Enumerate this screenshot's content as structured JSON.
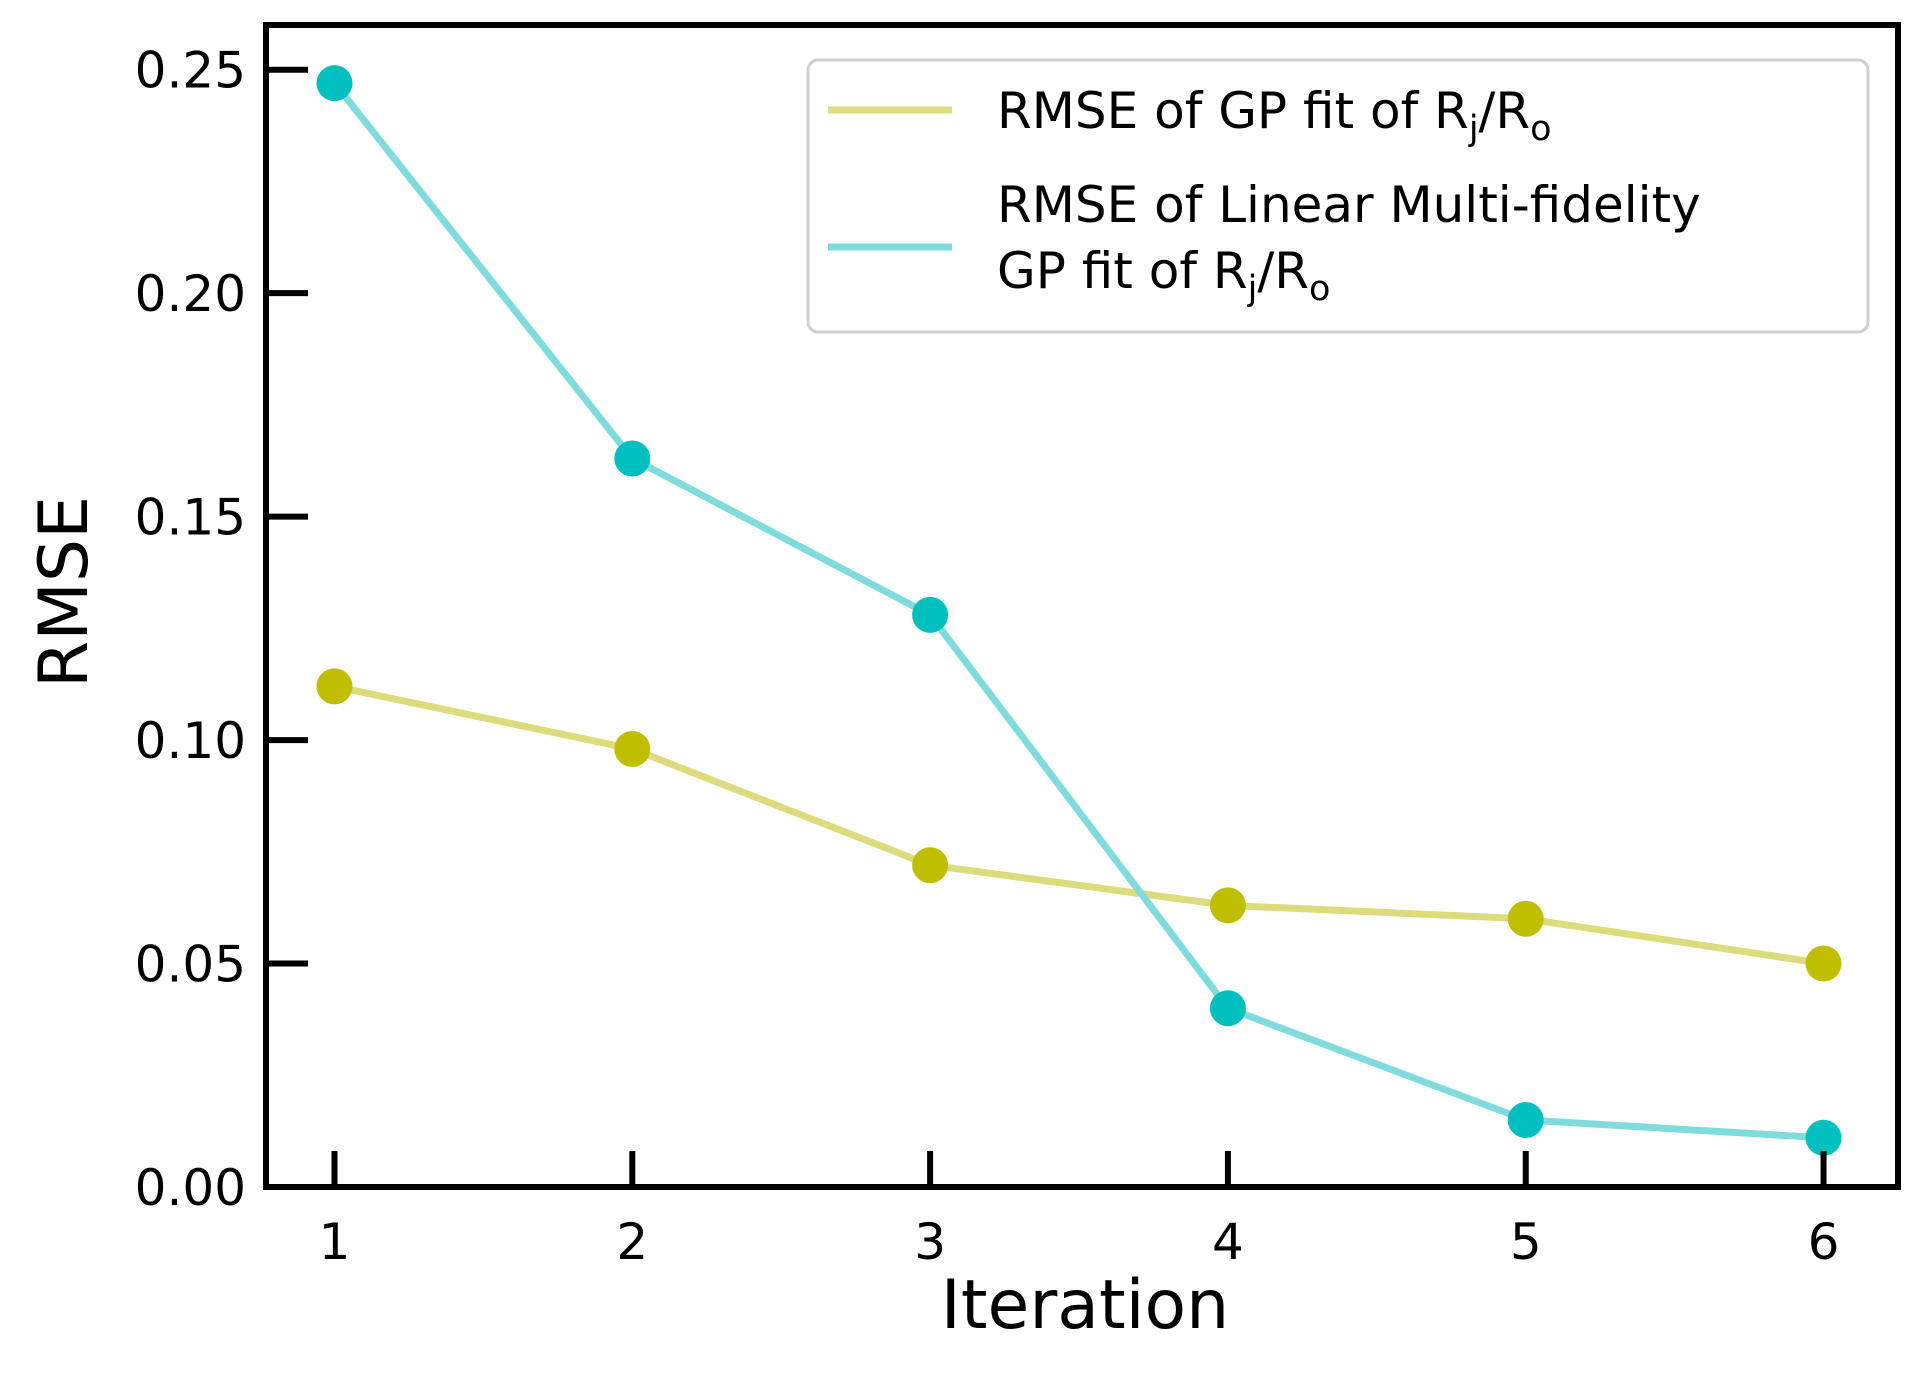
{
  "chart_data": {
    "type": "line",
    "title": "",
    "xlabel": "Iteration",
    "ylabel": "RMSE",
    "x": [
      1,
      2,
      3,
      4,
      5,
      6
    ],
    "xlim": [
      0.77,
      6.25
    ],
    "ylim": [
      0.0,
      0.26
    ],
    "xticks": [
      1,
      2,
      3,
      4,
      5,
      6
    ],
    "yticks": [
      0.0,
      0.05,
      0.1,
      0.15,
      0.2,
      0.25
    ],
    "ytick_labels": [
      "0.00",
      "0.05",
      "0.10",
      "0.15",
      "0.20",
      "0.25"
    ],
    "grid": false,
    "legend_position": "top-right",
    "series": [
      {
        "name": "RMSE of GP fit of R_j/R_o",
        "legend_main": "RMSE of GP fit of R",
        "legend_sub1": "j",
        "legend_mid": "/R",
        "legend_sub2": "o",
        "values": [
          0.112,
          0.098,
          0.072,
          0.063,
          0.06,
          0.05
        ],
        "line_color": "#dcdc7c",
        "marker_color": "#bfbf00"
      },
      {
        "name": "RMSE of Linear Multi-fidelity GP fit of R_j/R_o",
        "legend_line1": "RMSE of Linear Multi-fidelity",
        "legend_main": "GP fit of R",
        "legend_sub1": "j",
        "legend_mid": "/R",
        "legend_sub2": "o",
        "values": [
          0.247,
          0.163,
          0.128,
          0.04,
          0.015,
          0.011
        ],
        "line_color": "#80dcdc",
        "marker_color": "#00bfbf"
      }
    ]
  }
}
